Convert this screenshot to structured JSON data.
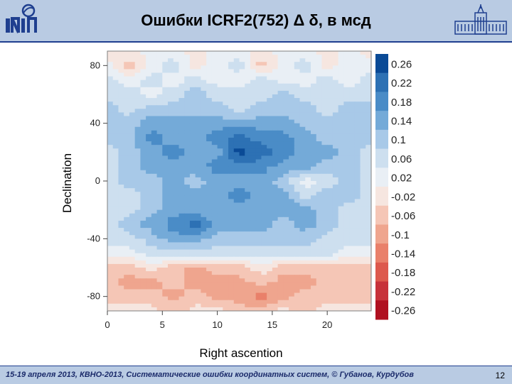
{
  "header": {
    "title": "Ошибки ICRF2(752) Δ δ,  в мсд"
  },
  "footer": {
    "text": "15-19  апреля  2013,  КВНО-2013,  Систематические ошибки координатных систем, © Губанов, Курдубов",
    "page_number": "12"
  },
  "chart_data": {
    "type": "heatmap",
    "title": "",
    "xlabel": "Right ascention",
    "ylabel": "Declination",
    "xlim": [
      0,
      24
    ],
    "ylim": [
      -90,
      90
    ],
    "x_ticks": [
      0,
      5,
      10,
      15,
      20
    ],
    "y_ticks": [
      80,
      40,
      0,
      -40,
      -80
    ],
    "colorbar": {
      "levels": [
        "0.26",
        "0.22",
        "0.18",
        "0.14",
        "0.1",
        "0.06",
        "0.02",
        "-0.02",
        "-0.06",
        "-0.1",
        "-0.14",
        "-0.18",
        "-0.22",
        "-0.26"
      ],
      "colors": [
        "#0a4a96",
        "#2d71b4",
        "#4a8cc7",
        "#74aad8",
        "#a8c9e8",
        "#cddfef",
        "#e9eff5",
        "#f6e6e0",
        "#f5c6b6",
        "#efa58e",
        "#e9806a",
        "#dd594d",
        "#c7323a",
        "#b01020"
      ]
    },
    "grid": {
      "ra_hours": [
        0,
        2,
        4,
        6,
        8,
        10,
        12,
        14,
        16,
        18,
        20,
        22,
        24
      ],
      "declinations": [
        90,
        80,
        70,
        60,
        50,
        40,
        30,
        20,
        10,
        0,
        -10,
        -20,
        -30,
        -40,
        -50,
        -60,
        -70,
        -80,
        -90
      ],
      "values": [
        [
          -0.02,
          -0.02,
          0.02,
          0.02,
          -0.02,
          0.02,
          0.02,
          -0.02,
          0.02,
          0.02,
          -0.02,
          0.02,
          -0.02
        ],
        [
          0.02,
          -0.06,
          0.02,
          0.06,
          -0.02,
          0.02,
          0.06,
          -0.06,
          0.02,
          0.06,
          -0.02,
          0.02,
          0.02
        ],
        [
          0.06,
          0.02,
          0.06,
          0.02,
          0.06,
          0.02,
          0.02,
          0.06,
          0.02,
          0.02,
          0.06,
          0.02,
          0.06
        ],
        [
          0.06,
          0.06,
          0.02,
          0.06,
          0.1,
          0.06,
          0.06,
          0.06,
          0.1,
          0.06,
          0.06,
          0.06,
          0.06
        ],
        [
          0.1,
          0.06,
          0.1,
          0.1,
          0.1,
          0.1,
          0.06,
          0.1,
          0.1,
          0.1,
          0.06,
          0.1,
          0.1
        ],
        [
          0.1,
          0.1,
          0.14,
          0.14,
          0.14,
          0.14,
          0.14,
          0.14,
          0.14,
          0.1,
          0.1,
          0.1,
          0.1
        ],
        [
          0.1,
          0.1,
          0.18,
          0.14,
          0.14,
          0.18,
          0.22,
          0.18,
          0.18,
          0.14,
          0.1,
          0.1,
          0.1
        ],
        [
          0.06,
          0.1,
          0.14,
          0.18,
          0.14,
          0.14,
          0.26,
          0.22,
          0.18,
          0.14,
          0.14,
          0.1,
          0.06
        ],
        [
          0.06,
          0.1,
          0.14,
          0.14,
          0.14,
          0.18,
          0.18,
          0.18,
          0.14,
          0.14,
          0.1,
          0.1,
          0.06
        ],
        [
          0.06,
          0.1,
          0.1,
          0.14,
          0.1,
          0.14,
          0.14,
          0.14,
          0.1,
          0.02,
          0.06,
          0.1,
          0.06
        ],
        [
          0.06,
          0.06,
          0.1,
          0.14,
          0.14,
          0.14,
          0.18,
          0.14,
          0.14,
          0.06,
          0.1,
          0.1,
          0.06
        ],
        [
          0.06,
          0.06,
          0.1,
          0.14,
          0.14,
          0.14,
          0.14,
          0.14,
          0.14,
          0.14,
          0.1,
          0.06,
          0.06
        ],
        [
          0.06,
          0.1,
          0.14,
          0.18,
          0.22,
          0.14,
          0.14,
          0.14,
          0.1,
          0.14,
          0.1,
          0.06,
          0.06
        ],
        [
          0.06,
          0.06,
          0.1,
          0.14,
          0.14,
          0.1,
          0.1,
          0.1,
          0.1,
          0.1,
          0.06,
          0.06,
          0.06
        ],
        [
          0.02,
          0.02,
          0.06,
          0.06,
          0.06,
          0.06,
          0.06,
          0.06,
          0.06,
          0.06,
          0.06,
          0.02,
          0.02
        ],
        [
          -0.06,
          -0.06,
          -0.02,
          -0.06,
          -0.1,
          -0.06,
          -0.06,
          -0.02,
          -0.06,
          -0.06,
          -0.06,
          -0.06,
          -0.06
        ],
        [
          -0.06,
          -0.1,
          -0.1,
          -0.06,
          -0.1,
          -0.1,
          -0.1,
          -0.06,
          -0.1,
          -0.1,
          -0.06,
          -0.06,
          -0.06
        ],
        [
          -0.06,
          -0.06,
          -0.06,
          -0.1,
          -0.06,
          -0.1,
          -0.1,
          -0.14,
          -0.1,
          -0.06,
          -0.06,
          -0.06,
          -0.06
        ],
        [
          -0.02,
          -0.02,
          -0.02,
          -0.06,
          -0.02,
          -0.02,
          -0.06,
          -0.06,
          -0.02,
          -0.06,
          -0.02,
          -0.02,
          -0.02
        ]
      ]
    }
  }
}
